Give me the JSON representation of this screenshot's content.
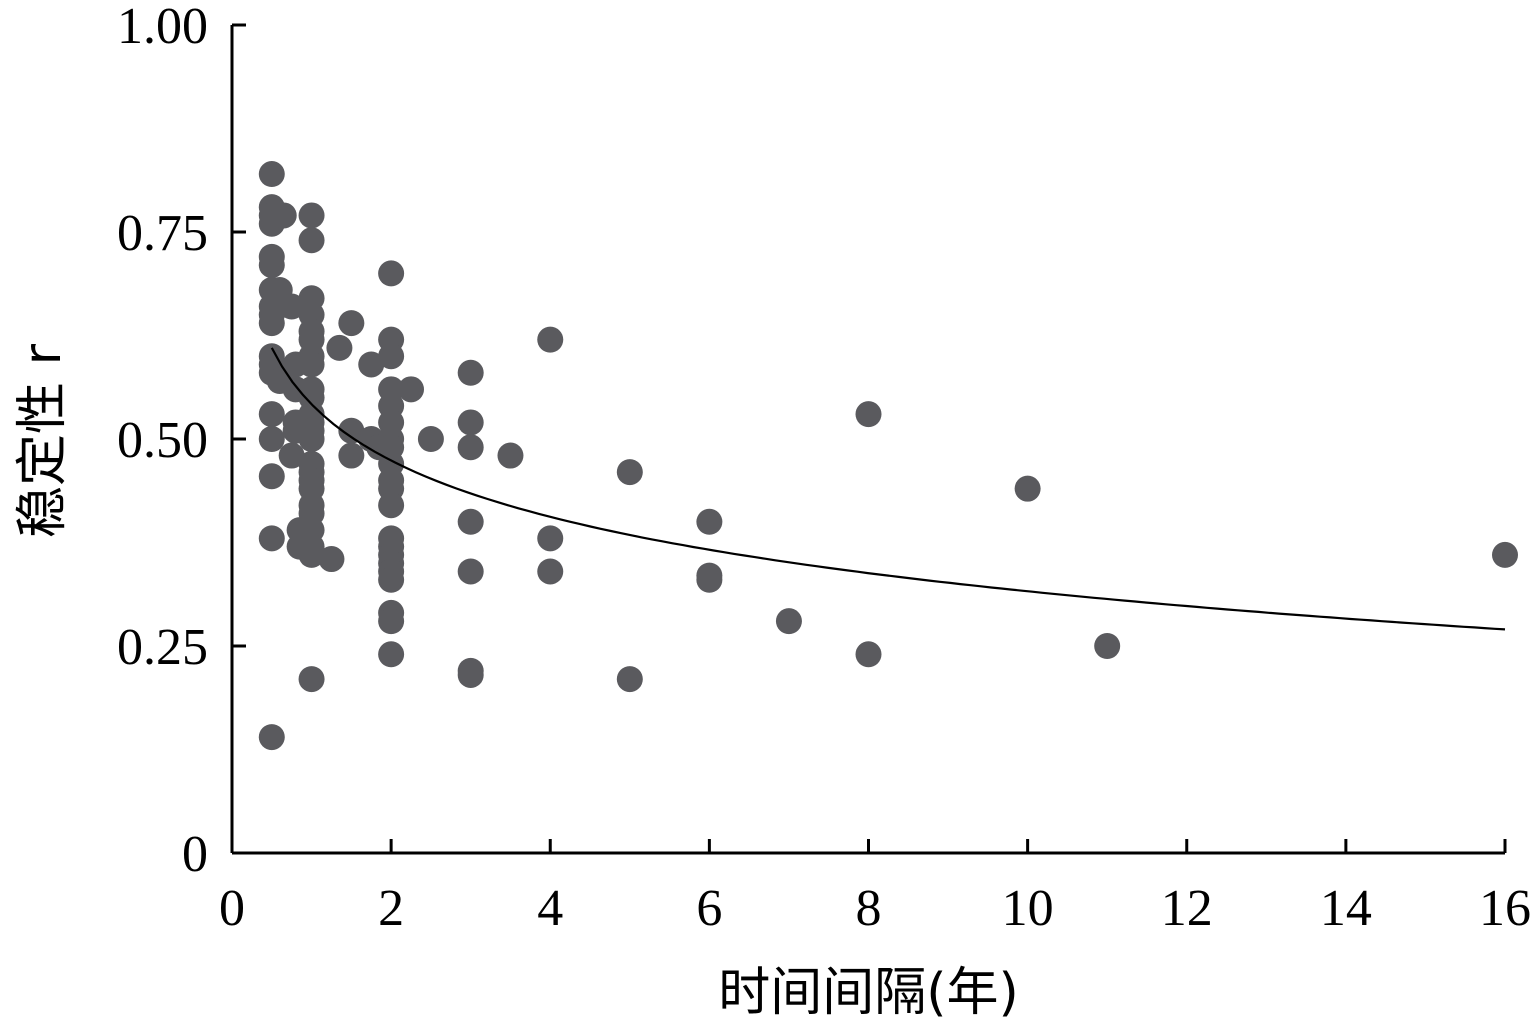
{
  "chart_data": {
    "type": "scatter",
    "title": "",
    "xlabel": "时间间隔(年)",
    "ylabel": "稳定性 r",
    "xlim": [
      0,
      16
    ],
    "ylim": [
      0,
      1.0
    ],
    "x_ticks": [
      0,
      2,
      4,
      6,
      8,
      10,
      12,
      14,
      16
    ],
    "x_tick_labels": [
      "0",
      "2",
      "4",
      "6",
      "8",
      "10",
      "12",
      "14",
      "16"
    ],
    "y_ticks": [
      0,
      0.25,
      0.5,
      0.75,
      1.0
    ],
    "y_tick_labels": [
      "0",
      "0.25",
      "0.50",
      "0.75",
      "1.00"
    ],
    "grid": false,
    "legend": "none",
    "marker_color": "#5a5a5e",
    "trend_color": "#000000",
    "series": [
      {
        "values_xy": [
          [
            0.5,
            0.82
          ],
          [
            0.5,
            0.78
          ],
          [
            0.5,
            0.77
          ],
          [
            0.5,
            0.76
          ],
          [
            0.65,
            0.77
          ],
          [
            0.5,
            0.72
          ],
          [
            0.5,
            0.71
          ],
          [
            0.6,
            0.68
          ],
          [
            0.5,
            0.68
          ],
          [
            0.5,
            0.66
          ],
          [
            0.5,
            0.65
          ],
          [
            0.5,
            0.64
          ],
          [
            0.75,
            0.66
          ],
          [
            0.5,
            0.6
          ],
          [
            0.5,
            0.59
          ],
          [
            0.5,
            0.58
          ],
          [
            0.6,
            0.57
          ],
          [
            0.8,
            0.59
          ],
          [
            0.8,
            0.56
          ],
          [
            0.5,
            0.53
          ],
          [
            0.5,
            0.5
          ],
          [
            0.5,
            0.455
          ],
          [
            0.5,
            0.38
          ],
          [
            0.5,
            0.14
          ],
          [
            0.75,
            0.48
          ],
          [
            0.8,
            0.51
          ],
          [
            0.8,
            0.52
          ],
          [
            0.85,
            0.37
          ],
          [
            0.85,
            0.39
          ],
          [
            1.0,
            0.77
          ],
          [
            1.0,
            0.74
          ],
          [
            1.0,
            0.67
          ],
          [
            1.0,
            0.65
          ],
          [
            1.0,
            0.63
          ],
          [
            1.0,
            0.62
          ],
          [
            1.0,
            0.6
          ],
          [
            1.0,
            0.59
          ],
          [
            1.0,
            0.56
          ],
          [
            1.0,
            0.55
          ],
          [
            1.0,
            0.53
          ],
          [
            1.0,
            0.52
          ],
          [
            1.0,
            0.51
          ],
          [
            1.0,
            0.5
          ],
          [
            1.0,
            0.47
          ],
          [
            1.0,
            0.46
          ],
          [
            1.0,
            0.45
          ],
          [
            1.0,
            0.44
          ],
          [
            1.0,
            0.42
          ],
          [
            1.0,
            0.41
          ],
          [
            1.0,
            0.39
          ],
          [
            1.0,
            0.37
          ],
          [
            1.0,
            0.36
          ],
          [
            1.0,
            0.21
          ],
          [
            1.25,
            0.355
          ],
          [
            1.35,
            0.61
          ],
          [
            1.5,
            0.64
          ],
          [
            1.5,
            0.51
          ],
          [
            1.5,
            0.48
          ],
          [
            1.75,
            0.5
          ],
          [
            1.75,
            0.59
          ],
          [
            1.85,
            0.49
          ],
          [
            2.0,
            0.7
          ],
          [
            2.0,
            0.62
          ],
          [
            2.0,
            0.6
          ],
          [
            2.0,
            0.56
          ],
          [
            2.0,
            0.54
          ],
          [
            2.0,
            0.52
          ],
          [
            2.0,
            0.5
          ],
          [
            2.0,
            0.49
          ],
          [
            2.0,
            0.47
          ],
          [
            2.0,
            0.45
          ],
          [
            2.0,
            0.44
          ],
          [
            2.0,
            0.42
          ],
          [
            2.0,
            0.38
          ],
          [
            2.0,
            0.37
          ],
          [
            2.0,
            0.36
          ],
          [
            2.0,
            0.35
          ],
          [
            2.0,
            0.34
          ],
          [
            2.0,
            0.33
          ],
          [
            2.0,
            0.29
          ],
          [
            2.0,
            0.28
          ],
          [
            2.0,
            0.24
          ],
          [
            2.25,
            0.56
          ],
          [
            2.5,
            0.5
          ],
          [
            3.0,
            0.58
          ],
          [
            3.0,
            0.52
          ],
          [
            3.0,
            0.49
          ],
          [
            3.0,
            0.4
          ],
          [
            3.0,
            0.34
          ],
          [
            3.0,
            0.22
          ],
          [
            3.0,
            0.215
          ],
          [
            3.5,
            0.48
          ],
          [
            4.0,
            0.62
          ],
          [
            4.0,
            0.38
          ],
          [
            4.0,
            0.34
          ],
          [
            5.0,
            0.46
          ],
          [
            5.0,
            0.21
          ],
          [
            6.0,
            0.4
          ],
          [
            6.0,
            0.335
          ],
          [
            6.0,
            0.33
          ],
          [
            7.0,
            0.28
          ],
          [
            8.0,
            0.53
          ],
          [
            8.0,
            0.24
          ],
          [
            10.0,
            0.44
          ],
          [
            11.0,
            0.25
          ],
          [
            16.0,
            0.36
          ]
        ]
      }
    ],
    "trend_line": {
      "type": "logarithmic",
      "x_range": [
        0.5,
        16
      ],
      "y_at_x_start": 0.61,
      "y_at_x_end": 0.27
    }
  }
}
